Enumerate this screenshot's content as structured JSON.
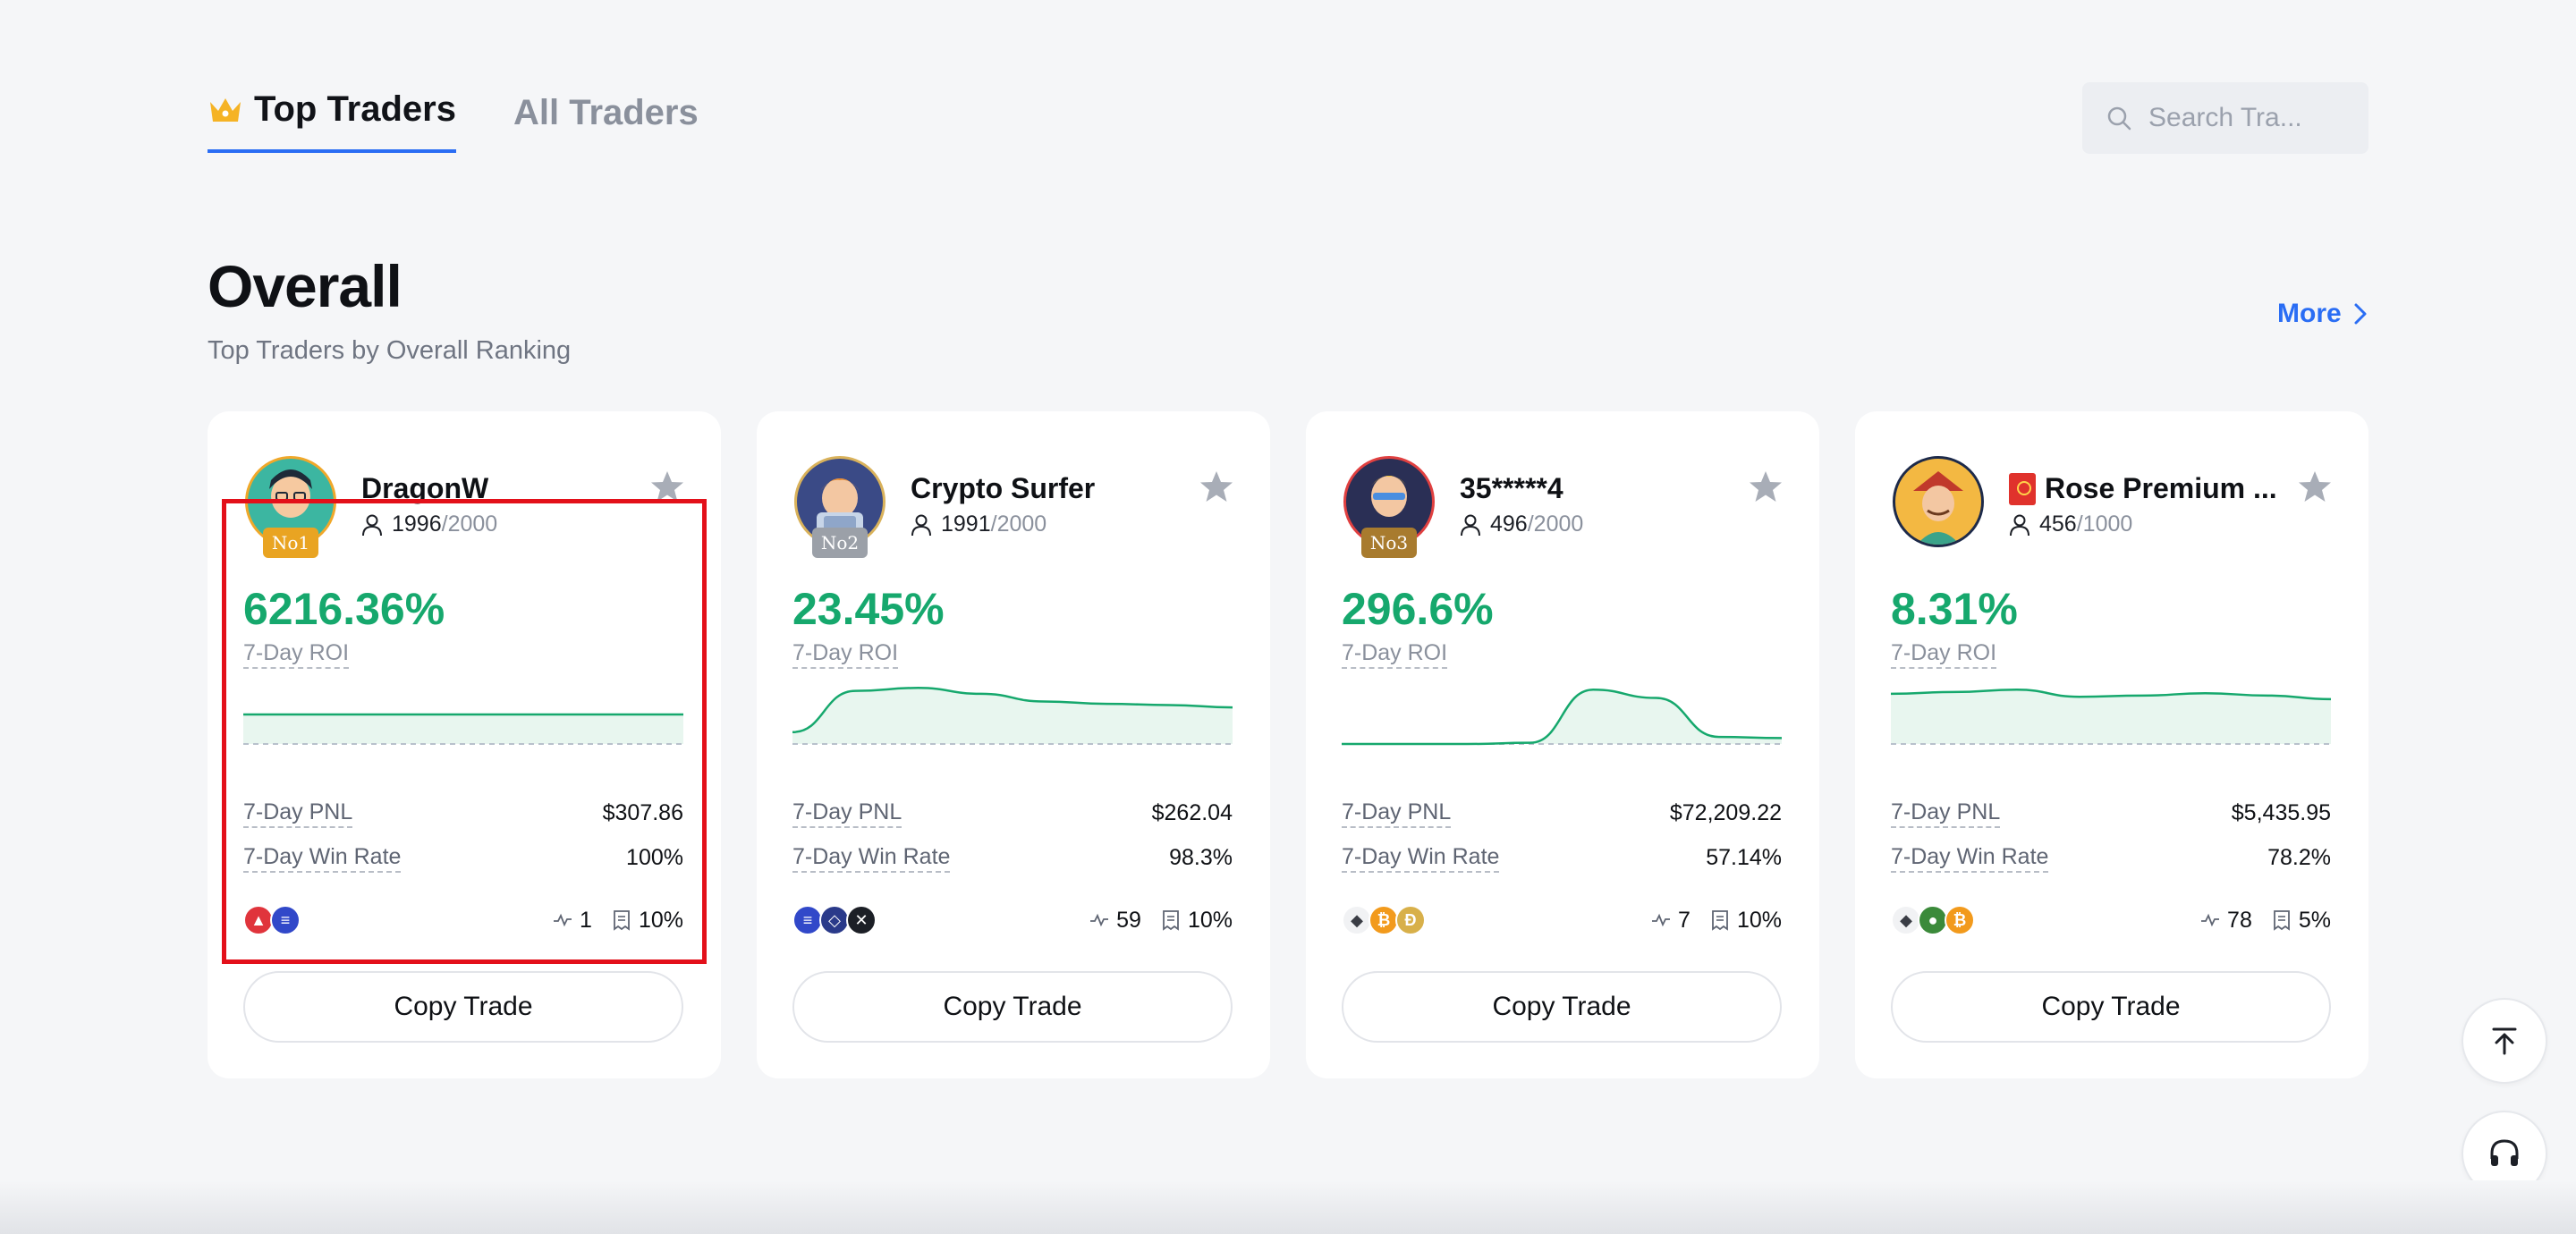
{
  "tabs": [
    {
      "label": "Top Traders",
      "active": true,
      "icon": "crown-icon"
    },
    {
      "label": "All Traders",
      "active": false
    }
  ],
  "search": {
    "placeholder": "Search Tra..."
  },
  "section": {
    "title": "Overall",
    "subtitle": "Top Traders by Overall Ranking",
    "more_label": "More"
  },
  "cards": [
    {
      "name": "DragonW",
      "rank": "No1",
      "followers": "1996",
      "max_followers": "/2000",
      "roi": "6216.36%",
      "roi_label": "7-Day ROI",
      "pnl_label": "7-Day PNL",
      "pnl": "$307.86",
      "win_label": "7-Day Win Rate",
      "win_rate": "100%",
      "trades": "1",
      "share": "10%",
      "coins": [
        "arbitrum",
        "solana"
      ],
      "copy_label": "Copy Trade",
      "trend": [
        0.5,
        0.5,
        0.5,
        0.5,
        0.5,
        0.5,
        0.5,
        0.5
      ]
    },
    {
      "name": "Crypto Surfer",
      "rank": "No2",
      "followers": "1991",
      "max_followers": "/2000",
      "roi": "23.45%",
      "roi_label": "7-Day ROI",
      "pnl_label": "7-Day PNL",
      "pnl": "$262.04",
      "win_label": "7-Day Win Rate",
      "win_rate": "98.3%",
      "trades": "59",
      "share": "10%",
      "coins": [
        "solana",
        "chainlink",
        "x"
      ],
      "copy_label": "Copy Trade",
      "trend": [
        0.2,
        0.9,
        0.95,
        0.85,
        0.72,
        0.68,
        0.66,
        0.62
      ]
    },
    {
      "name": "35*****4",
      "rank": "No3",
      "followers": "496",
      "max_followers": "/2000",
      "roi": "296.6%",
      "roi_label": "7-Day ROI",
      "pnl_label": "7-Day PNL",
      "pnl": "$72,209.22",
      "win_label": "7-Day Win Rate",
      "win_rate": "57.14%",
      "trades": "7",
      "share": "10%",
      "coins": [
        "ethereum",
        "bitcoin",
        "dogecoin"
      ],
      "copy_label": "Copy Trade",
      "trend": [
        0.0,
        0.0,
        0.0,
        0.02,
        0.92,
        0.78,
        0.12,
        0.1
      ]
    },
    {
      "name": "Rose Premium ...",
      "rank": "",
      "followers": "456",
      "max_followers": "/1000",
      "roi": "8.31%",
      "roi_label": "7-Day ROI",
      "pnl_label": "7-Day PNL",
      "pnl": "$5,435.95",
      "win_label": "7-Day Win Rate",
      "win_rate": "78.2%",
      "trades": "78",
      "share": "5%",
      "coins": [
        "ethereum",
        "pepe",
        "bitcoin"
      ],
      "copy_label": "Copy Trade",
      "trend": [
        0.85,
        0.88,
        0.92,
        0.8,
        0.82,
        0.86,
        0.82,
        0.76
      ]
    }
  ],
  "colors": {
    "accent": "#2a6df4",
    "positive": "#16a86d",
    "highlight": "#e3101a"
  }
}
